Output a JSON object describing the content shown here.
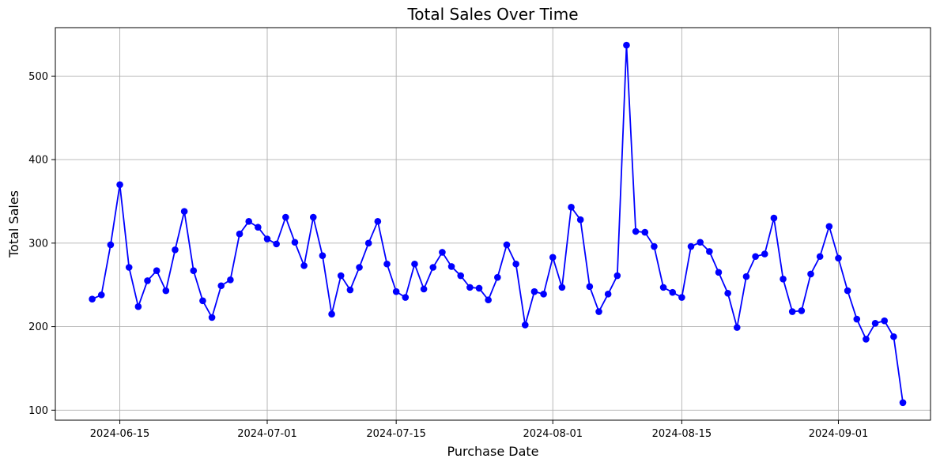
{
  "chart_data": {
    "type": "line",
    "title": "Total Sales Over Time",
    "xlabel": "Purchase Date",
    "ylabel": "Total Sales",
    "grid": true,
    "ylim": [
      88,
      558
    ],
    "xlim": [
      "2024-06-08",
      "2024-09-11"
    ],
    "x_ticks": [
      "2024-06-15",
      "2024-07-01",
      "2024-07-15",
      "2024-08-01",
      "2024-08-15",
      "2024-09-01"
    ],
    "y_ticks": [
      100,
      200,
      300,
      400,
      500
    ],
    "series": [
      {
        "color": "#0000ff",
        "marker": "circle",
        "x": [
          "2024-06-12",
          "2024-06-13",
          "2024-06-14",
          "2024-06-15",
          "2024-06-16",
          "2024-06-17",
          "2024-06-18",
          "2024-06-19",
          "2024-06-20",
          "2024-06-21",
          "2024-06-22",
          "2024-06-23",
          "2024-06-24",
          "2024-06-25",
          "2024-06-26",
          "2024-06-27",
          "2024-06-28",
          "2024-06-29",
          "2024-06-30",
          "2024-07-01",
          "2024-07-02",
          "2024-07-03",
          "2024-07-04",
          "2024-07-05",
          "2024-07-06",
          "2024-07-07",
          "2024-07-08",
          "2024-07-09",
          "2024-07-10",
          "2024-07-11",
          "2024-07-12",
          "2024-07-13",
          "2024-07-14",
          "2024-07-15",
          "2024-07-16",
          "2024-07-17",
          "2024-07-18",
          "2024-07-19",
          "2024-07-20",
          "2024-07-21",
          "2024-07-22",
          "2024-07-23",
          "2024-07-24",
          "2024-07-25",
          "2024-07-26",
          "2024-07-27",
          "2024-07-28",
          "2024-07-29",
          "2024-07-30",
          "2024-07-31",
          "2024-08-01",
          "2024-08-02",
          "2024-08-03",
          "2024-08-04",
          "2024-08-05",
          "2024-08-06",
          "2024-08-07",
          "2024-08-08",
          "2024-08-09",
          "2024-08-10",
          "2024-08-11",
          "2024-08-12",
          "2024-08-13",
          "2024-08-14",
          "2024-08-15",
          "2024-08-16",
          "2024-08-17",
          "2024-08-18",
          "2024-08-19",
          "2024-08-20",
          "2024-08-21",
          "2024-08-22",
          "2024-08-23",
          "2024-08-24",
          "2024-08-25",
          "2024-08-26",
          "2024-08-27",
          "2024-08-28",
          "2024-08-29",
          "2024-08-30",
          "2024-08-31",
          "2024-09-01",
          "2024-09-02",
          "2024-09-03",
          "2024-09-04",
          "2024-09-05",
          "2024-09-06",
          "2024-09-07",
          "2024-09-08"
        ],
        "values": [
          233,
          238,
          298,
          370,
          271,
          224,
          255,
          267,
          243,
          292,
          338,
          267,
          231,
          211,
          249,
          256,
          311,
          326,
          319,
          305,
          299,
          331,
          301,
          273,
          331,
          285,
          215,
          261,
          244,
          271,
          300,
          326,
          275,
          242,
          235,
          275,
          245,
          271,
          289,
          272,
          261,
          247,
          246,
          232,
          259,
          298,
          275,
          202,
          242,
          239,
          283,
          247,
          343,
          328,
          248,
          218,
          239,
          261,
          537,
          314,
          313,
          296,
          247,
          241,
          235,
          296,
          301,
          290,
          265,
          240,
          199,
          260,
          284,
          287,
          330,
          257,
          218,
          219,
          263,
          284,
          320,
          282,
          243,
          209,
          185,
          204,
          207,
          188,
          109
        ]
      }
    ]
  }
}
